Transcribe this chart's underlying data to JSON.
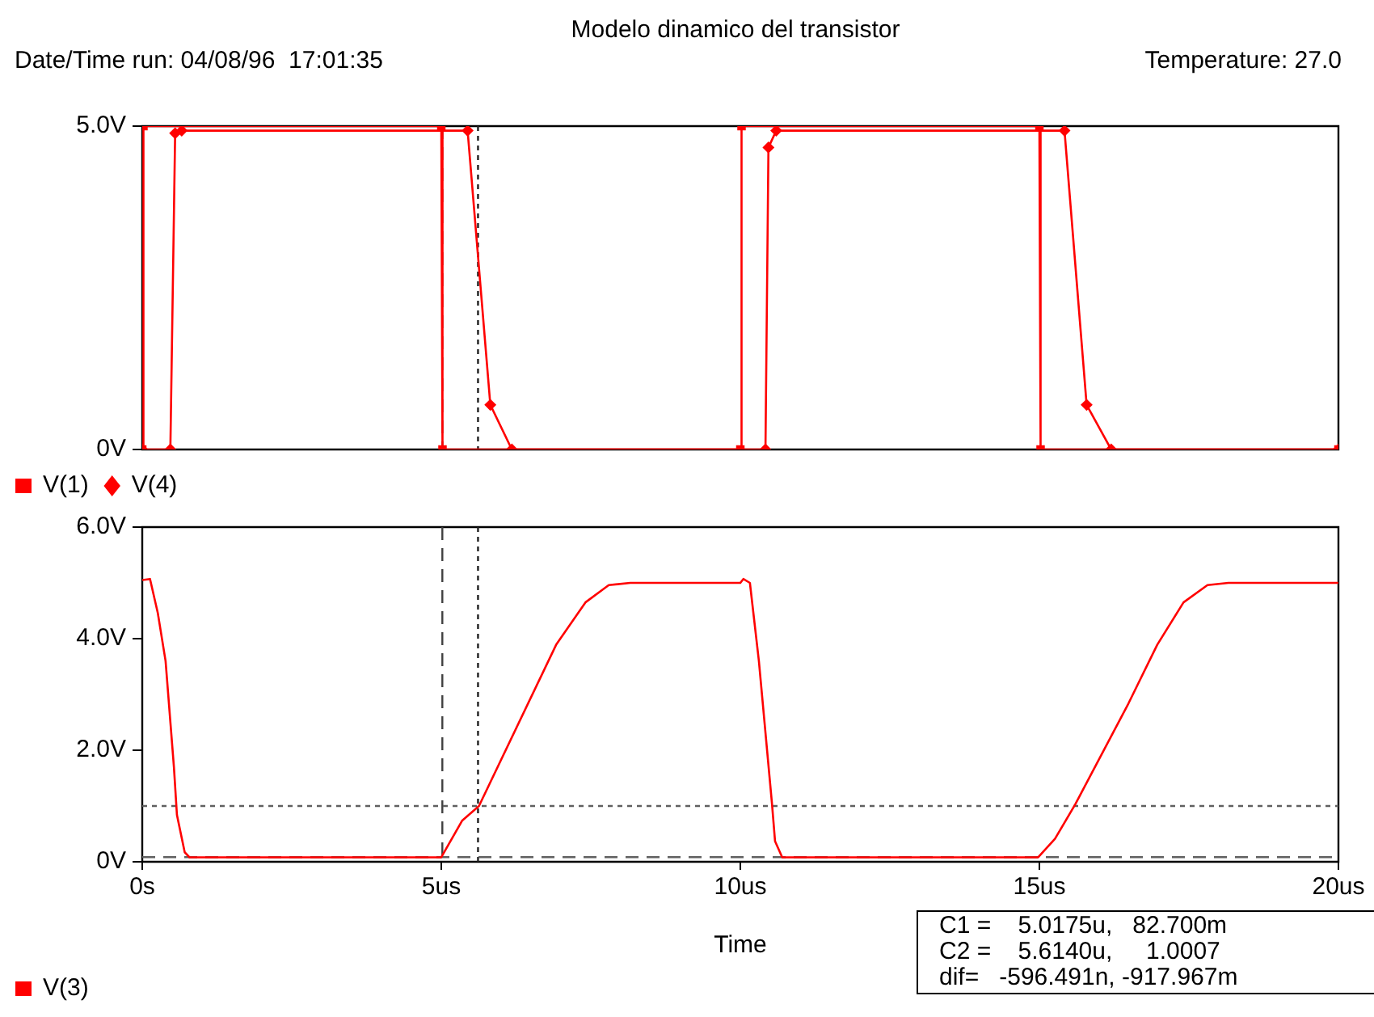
{
  "chart_data": [
    {
      "type": "line",
      "title": "Modelo dinamico del transistor",
      "annotations": [
        "Date/Time run: 04/08/96  17:01:35",
        "Temperature: 27.0"
      ],
      "xlim": [
        0,
        20
      ],
      "tick_labels": "y",
      "ylim": [
        0,
        5
      ],
      "yticks": [
        {
          "value": 0,
          "label": "0V"
        },
        {
          "value": 5,
          "label": "5.0V"
        }
      ],
      "legend": "bottom left",
      "series": [
        {
          "name": "V(1)",
          "color": "#ff0000",
          "marker": "square",
          "x": [
            0,
            0.02,
            5.0,
            5.02,
            10.0,
            10.02,
            15.0,
            15.02,
            20
          ],
          "values": [
            0,
            5,
            5,
            0,
            0,
            5,
            5,
            0,
            0
          ]
        },
        {
          "name": "V(4)",
          "color": "#ff0000",
          "marker": "diamond",
          "x": [
            0,
            0.47,
            0.55,
            0.66,
            5.44,
            5.82,
            6.18,
            10.42,
            10.47,
            10.6,
            15.42,
            15.79,
            16.2,
            20
          ],
          "values": [
            0,
            0,
            4.89,
            4.93,
            4.93,
            0.69,
            0,
            0,
            4.67,
            4.93,
            4.93,
            0.69,
            0,
            0
          ]
        }
      ],
      "ref_lines": [
        {
          "axis": "x",
          "value": 5.0175,
          "color": "#404040",
          "line_style": "dashed"
        },
        {
          "axis": "x",
          "value": 5.614,
          "color": "#202020",
          "line_style": "dotted"
        }
      ]
    },
    {
      "type": "line",
      "xlabel": "Time",
      "annotations": [
        "C1 =    5.0175u,   82.700m",
        "C2 =    5.6140u,     1.0007",
        "dif=   -596.491n, -917.967m"
      ],
      "xlim": [
        0,
        20
      ],
      "xticks": [
        {
          "value": 0,
          "label": "0s"
        },
        {
          "value": 5,
          "label": "5us"
        },
        {
          "value": 10,
          "label": "10us"
        },
        {
          "value": 15,
          "label": "15us"
        },
        {
          "value": 20,
          "label": "20us"
        }
      ],
      "ylim": [
        0,
        6
      ],
      "yticks": [
        {
          "value": 0,
          "label": "0V"
        },
        {
          "value": 2,
          "label": "2.0V"
        },
        {
          "value": 4,
          "label": "4.0V"
        },
        {
          "value": 6,
          "label": "6.0V"
        }
      ],
      "legend": "bottom left",
      "marker": "none",
      "series": [
        {
          "name": "V(3)",
          "color": "#ff0000",
          "x": [
            0,
            0.13,
            0.26,
            0.39,
            0.53,
            0.58,
            0.71,
            0.79,
            5.0,
            5.35,
            5.63,
            6.92,
            7.41,
            7.8,
            8.16,
            10.0,
            10.05,
            10.16,
            10.31,
            10.53,
            10.58,
            10.7,
            14.98,
            15.26,
            15.6,
            16.49,
            16.97,
            17.41,
            17.81,
            18.16,
            20
          ],
          "values": [
            5.05,
            5.07,
            4.46,
            3.6,
            1.69,
            0.84,
            0.17,
            0.08,
            0.08,
            0.74,
            1.0,
            3.89,
            4.65,
            4.96,
            5.0,
            5.0,
            5.07,
            5.0,
            3.6,
            1.03,
            0.37,
            0.08,
            0.08,
            0.41,
            1.03,
            2.84,
            3.89,
            4.65,
            4.96,
            5.0,
            5.0
          ]
        }
      ],
      "ref_lines": [
        {
          "axis": "x",
          "value": 5.0175,
          "color": "#404040",
          "line_style": "dashed"
        },
        {
          "axis": "x",
          "value": 5.614,
          "color": "#202020",
          "line_style": "dotted"
        },
        {
          "axis": "y",
          "value": 0.0827,
          "color": "#606060",
          "line_style": "dashed"
        },
        {
          "axis": "y",
          "value": 1.0007,
          "color": "#606060",
          "line_style": "dotted"
        }
      ]
    }
  ]
}
